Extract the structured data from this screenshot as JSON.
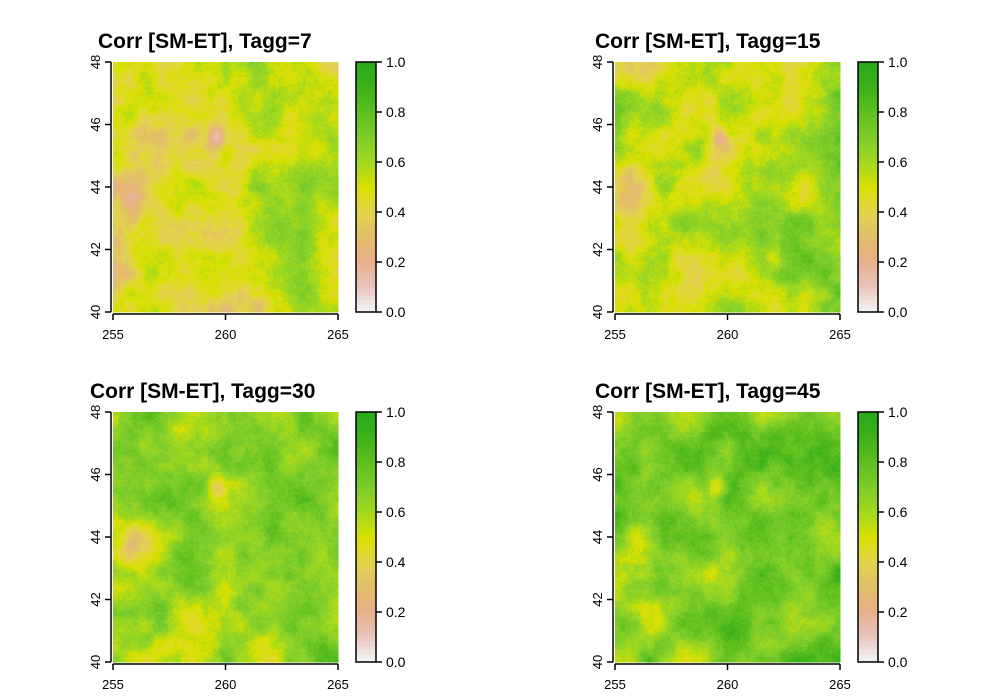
{
  "figure": {
    "panels": [
      {
        "title": "Corr [SM-ET], Tagg=7",
        "green_bias": 0.0,
        "seed": 11
      },
      {
        "title": "Corr [SM-ET], Tagg=15",
        "green_bias": 0.06,
        "seed": 23
      },
      {
        "title": "Corr [SM-ET], Tagg=30",
        "green_bias": 0.16,
        "seed": 37
      },
      {
        "title": "Corr [SM-ET], Tagg=45",
        "green_bias": 0.22,
        "seed": 53
      }
    ],
    "x_axis": {
      "range": [
        255,
        265
      ],
      "ticks": [
        "255",
        "260",
        "265"
      ]
    },
    "y_axis": {
      "range": [
        40,
        48
      ],
      "ticks": [
        "40",
        "42",
        "44",
        "46",
        "48"
      ]
    },
    "colorbar": {
      "range": [
        0.0,
        1.0
      ],
      "ticks": [
        "0.0",
        "0.2",
        "0.4",
        "0.6",
        "0.8",
        "1.0"
      ],
      "palette": [
        "#f2f2f2",
        "#e8c3ba",
        "#e8b08a",
        "#e2be6a",
        "#e3d44a",
        "#d9e000",
        "#a3d81e",
        "#7fcd2a",
        "#5fc01f",
        "#3fb21a",
        "#2aa91a"
      ]
    }
  }
}
